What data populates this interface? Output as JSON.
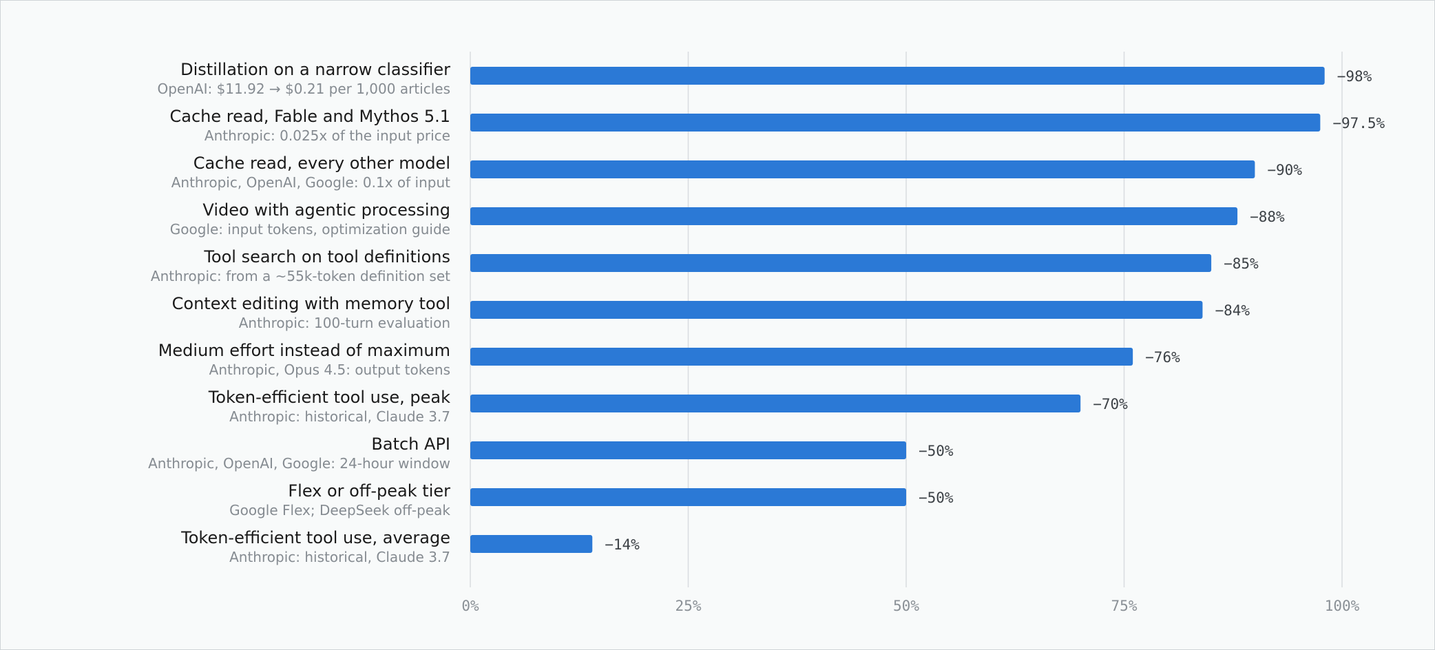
{
  "chart_data": {
    "type": "bar",
    "orientation": "horizontal",
    "title": "",
    "xlabel": "",
    "ylabel": "",
    "xlim": [
      0,
      100
    ],
    "x_ticks": [
      "0%",
      "25%",
      "50%",
      "75%",
      "100%"
    ],
    "x_tick_values": [
      0,
      25,
      50,
      75,
      100
    ],
    "grid": "vertical",
    "legend": "none",
    "bar_color": "#2b79d6",
    "categories": [
      {
        "label": "Distillation on a narrow classifier",
        "sublabel": "OpenAI: $11.92 → $0.21 per 1,000 articles",
        "value": 98,
        "value_label": "−98%"
      },
      {
        "label": "Cache read, Fable and Mythos 5.1",
        "sublabel": "Anthropic: 0.025x of the input price",
        "value": 97.5,
        "value_label": "−97.5%"
      },
      {
        "label": "Cache read, every other model",
        "sublabel": "Anthropic, OpenAI, Google: 0.1x of input",
        "value": 90,
        "value_label": "−90%"
      },
      {
        "label": "Video with agentic processing",
        "sublabel": "Google: input tokens, optimization guide",
        "value": 88,
        "value_label": "−88%"
      },
      {
        "label": "Tool search on tool definitions",
        "sublabel": "Anthropic: from a ~55k-token definition set",
        "value": 85,
        "value_label": "−85%"
      },
      {
        "label": "Context editing with memory tool",
        "sublabel": "Anthropic: 100-turn evaluation",
        "value": 84,
        "value_label": "−84%"
      },
      {
        "label": "Medium effort instead of maximum",
        "sublabel": "Anthropic, Opus 4.5: output tokens",
        "value": 76,
        "value_label": "−76%"
      },
      {
        "label": "Token-efficient tool use, peak",
        "sublabel": "Anthropic: historical, Claude 3.7",
        "value": 70,
        "value_label": "−70%"
      },
      {
        "label": "Batch API",
        "sublabel": "Anthropic, OpenAI, Google: 24-hour window",
        "value": 50,
        "value_label": "−50%"
      },
      {
        "label": "Flex or off-peak tier",
        "sublabel": "Google Flex; DeepSeek off-peak",
        "value": 50,
        "value_label": "−50%"
      },
      {
        "label": "Token-efficient tool use, average",
        "sublabel": "Anthropic: historical, Claude 3.7",
        "value": 14,
        "value_label": "−14%"
      }
    ]
  }
}
